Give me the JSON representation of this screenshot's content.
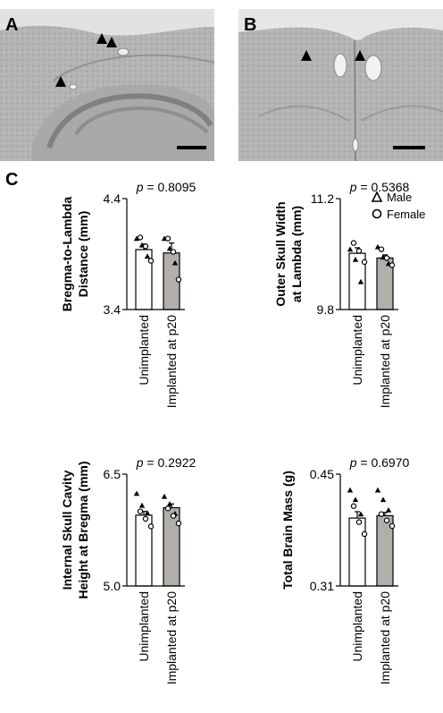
{
  "panels": {
    "a": {
      "letter": "A"
    },
    "b": {
      "letter": "B"
    },
    "c": {
      "letter": "C"
    }
  },
  "legend": {
    "male_label": "Male",
    "female_label": "Female",
    "male_icon": "triangle-icon",
    "female_icon": "circle-icon"
  },
  "colors": {
    "unimplanted_bar": "#ffffff",
    "implanted_bar": "#b2aeaa",
    "section_background": "#b6b6b6"
  },
  "chart_data": [
    {
      "type": "bar",
      "p_prefix": "p",
      "p_value": "= 0.8095",
      "ylabel_line1": "Bregma-to-Lambda",
      "ylabel_line2": "Distance (mm)",
      "ylim": [
        3.4,
        4.4
      ],
      "ytick_labels": [
        "4.4",
        "3.4"
      ],
      "categories": [
        "Unimplanted",
        "Implanted at p20"
      ],
      "values": [
        3.94,
        3.91
      ],
      "sem": [
        0.05,
        0.09
      ],
      "points": [
        {
          "male": [
            4.04,
            3.98,
            3.88
          ],
          "female": [
            4.05,
            3.97,
            3.84
          ]
        },
        {
          "male": [
            4.04,
            3.95,
            3.82
          ],
          "female": [
            4.04,
            3.92,
            3.67
          ]
        }
      ]
    },
    {
      "type": "bar",
      "p_prefix": "p",
      "p_value": "= 0.5368",
      "ylabel_line1": "Outer Skull Width",
      "ylabel_line2": "at Lambda (mm)",
      "ylim": [
        9.8,
        11.2
      ],
      "ytick_labels": [
        "11.2",
        "9.8"
      ],
      "categories": [
        "Unimplanted",
        "Implanted at p20"
      ],
      "values": [
        10.51,
        10.45
      ],
      "sem": [
        0.07,
        0.04
      ],
      "points": [
        {
          "male": [
            10.56,
            10.43,
            10.15
          ],
          "female": [
            10.64,
            10.54,
            10.4
          ]
        },
        {
          "male": [
            10.59,
            10.46,
            10.38
          ],
          "female": [
            10.56,
            10.45,
            10.36
          ]
        }
      ]
    },
    {
      "type": "bar",
      "p_prefix": "p",
      "p_value": "= 0.2922",
      "ylabel_line1": "Internal Skull Cavity",
      "ylabel_line2": "Height at Bregma (mm)",
      "ylim": [
        5.0,
        6.5
      ],
      "ytick_labels": [
        "6.5",
        "5.0"
      ],
      "categories": [
        "Unimplanted",
        "Implanted at p20"
      ],
      "values": [
        5.95,
        6.05
      ],
      "sem": [
        0.05,
        0.05
      ],
      "points": [
        {
          "male": [
            6.24,
            6.08,
            5.98
          ],
          "female": [
            6.0,
            5.9,
            5.8
          ]
        },
        {
          "male": [
            6.2,
            6.1,
            5.97
          ],
          "female": [
            6.04,
            5.94,
            5.84
          ]
        }
      ]
    },
    {
      "type": "bar",
      "p_prefix": "p",
      "p_value": "= 0.6970",
      "ylabel_line1": "Total Brain Mass (g)",
      "ylabel_line2": "",
      "ylim": [
        0.31,
        0.45
      ],
      "ytick_labels": [
        "0.45",
        "0.31"
      ],
      "categories": [
        "Unimplanted",
        "Implanted at p20"
      ],
      "values": [
        0.395,
        0.398
      ],
      "sem": [
        0.008,
        0.004
      ],
      "points": [
        {
          "male": [
            0.43,
            0.418,
            0.4
          ],
          "female": [
            0.41,
            0.39,
            0.375
          ]
        },
        {
          "male": [
            0.43,
            0.418,
            0.405
          ],
          "female": [
            0.4,
            0.392,
            0.385
          ]
        }
      ]
    }
  ]
}
